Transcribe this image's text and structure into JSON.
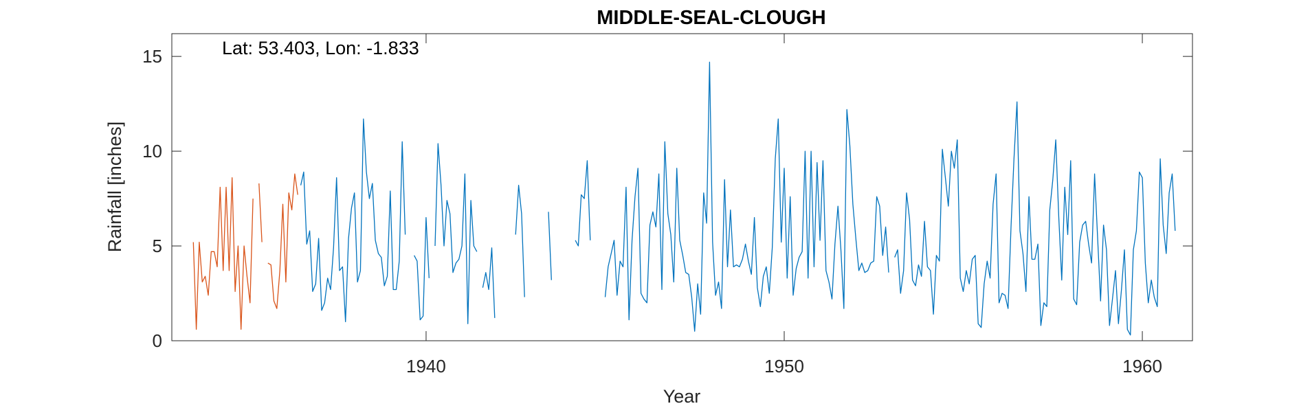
{
  "chart_data": {
    "type": "line",
    "title": "MIDDLE-SEAL-CLOUGH",
    "annotation": "Lat: 53.403, Lon: -1.833",
    "xlabel": "Year",
    "ylabel": "Rainfall [inches]",
    "xlim": [
      1932.9,
      1961.4
    ],
    "ylim": [
      0,
      16.2
    ],
    "xticks": [
      1940,
      1950,
      1960
    ],
    "yticks": [
      0,
      5,
      10,
      15
    ],
    "grid": false,
    "series": [
      {
        "color": "#D95319",
        "x_start": 1933.5,
        "x_step": 0.0833333,
        "values": [
          5.2,
          0.6,
          5.2,
          3.1,
          3.4,
          2.4,
          4.7,
          4.7,
          3.9,
          8.1,
          3.7,
          8.1,
          3.7,
          8.6,
          2.6,
          5.0,
          0.6,
          5.0,
          3.4,
          2.0,
          7.5,
          null,
          8.3,
          5.2,
          null,
          4.1,
          4.0,
          2.1,
          1.7,
          3.7,
          7.2,
          3.1,
          7.8,
          6.9,
          8.8,
          7.7
        ]
      },
      {
        "color": "#0072BD",
        "x_start": 1936.5,
        "x_step": 0.0833333,
        "values": [
          8.2,
          8.9,
          5.1,
          5.8,
          2.6,
          3.0,
          5.4,
          1.6,
          2.0,
          3.3,
          2.7,
          4.9,
          8.6,
          3.7,
          3.9,
          1.0,
          5.4,
          7.0,
          7.8,
          3.1,
          3.7,
          11.7,
          8.9,
          7.5,
          8.3,
          5.3,
          4.6,
          4.4,
          2.9,
          3.4,
          7.9,
          2.7,
          2.7,
          4.2,
          10.5,
          5.6,
          null,
          null,
          4.5,
          4.2,
          1.1,
          1.3,
          6.5,
          3.3,
          null,
          5.0,
          10.4,
          8.2,
          5.0,
          7.4,
          6.7,
          3.6,
          4.1,
          4.3,
          5.0,
          8.8,
          0.9,
          7.4,
          5.0,
          4.7,
          null,
          2.8,
          3.6,
          2.7,
          4.9,
          1.2,
          null,
          null,
          null,
          null,
          null,
          null,
          5.6,
          8.2,
          6.7,
          2.3,
          null,
          null,
          null,
          null,
          null,
          null,
          null,
          6.8,
          3.2,
          null,
          null,
          null,
          null,
          null,
          null,
          null,
          5.3,
          5.0,
          7.7,
          7.5,
          9.5,
          5.3,
          null,
          null,
          null,
          null,
          2.3,
          3.9,
          4.6,
          5.3,
          2.4,
          4.2,
          3.9,
          8.1,
          1.1,
          5.3,
          7.6,
          9.1,
          2.5,
          2.2,
          2.0,
          6.1,
          6.8,
          6.0,
          8.8,
          2.7,
          10.5,
          6.7,
          5.6,
          3.1,
          9.1,
          5.3,
          4.5,
          3.6,
          3.5,
          2.3,
          0.5,
          3.0,
          1.4,
          7.8,
          6.2,
          14.7,
          5.2,
          2.4,
          3.1,
          1.7,
          8.5,
          3.9,
          6.9,
          3.9,
          4.0,
          3.9,
          4.3,
          5.1,
          4.2,
          3.5,
          6.5,
          2.8,
          1.8,
          3.4,
          3.9,
          2.5,
          4.9,
          9.6,
          11.7,
          5.2,
          9.1,
          3.3,
          7.6,
          2.4,
          3.8,
          4.4,
          4.7,
          10.0,
          3.3,
          10.0,
          3.9,
          9.4,
          5.3,
          9.5,
          3.7,
          3.1,
          2.2,
          5.1,
          7.1,
          4.8,
          1.7,
          12.2,
          10.3,
          7.2,
          5.4,
          3.7,
          4.1,
          3.6,
          3.7,
          4.1,
          4.2,
          7.6,
          7.1,
          4.5,
          6.0,
          3.6,
          null,
          4.4,
          4.8,
          2.5,
          3.7,
          7.8,
          6.4,
          3.2,
          2.9,
          4.0,
          3.4,
          6.3,
          3.9,
          3.7,
          1.4,
          4.5,
          4.2,
          10.1,
          8.6,
          7.1,
          10.0,
          9.1,
          10.6,
          3.3,
          2.6,
          3.7,
          3.0,
          4.3,
          4.5,
          0.9,
          0.7,
          3.0,
          4.2,
          3.3,
          7.2,
          8.8,
          2.0,
          2.5,
          2.4,
          1.7,
          6.0,
          9.6,
          12.6,
          5.8,
          4.6,
          2.6,
          7.6,
          4.3,
          4.3,
          5.1,
          0.8,
          2.0,
          1.8,
          6.9,
          8.5,
          10.6,
          6.5,
          3.2,
          8.1,
          5.6,
          9.5,
          2.2,
          1.9,
          5.2,
          6.1,
          6.3,
          5.1,
          4.1,
          8.8,
          5.5,
          2.1,
          6.1,
          4.8,
          0.8,
          2.2,
          3.7,
          0.9,
          2.7,
          4.8,
          0.6,
          0.3,
          4.8,
          5.8,
          8.9,
          8.6,
          4.1,
          2.0,
          3.2,
          2.3,
          1.8,
          9.6,
          6.1,
          4.6,
          7.8,
          8.8,
          5.8
        ]
      }
    ]
  }
}
